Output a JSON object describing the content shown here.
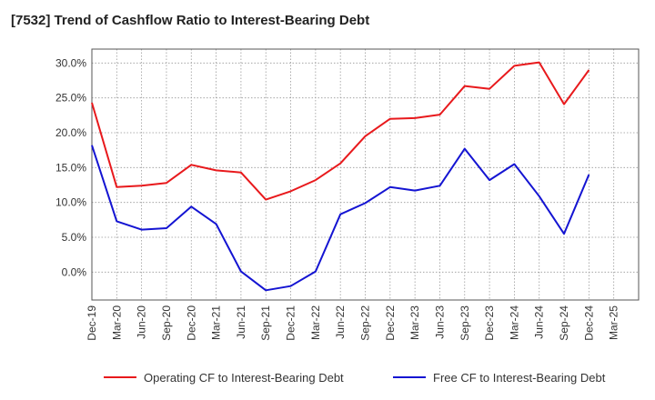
{
  "title": "[7532]  Trend of Cashflow Ratio to Interest-Bearing Debt",
  "chart_data": {
    "type": "line",
    "title": "[7532]  Trend of Cashflow Ratio to Interest-Bearing Debt",
    "categories": [
      "Dec-19",
      "Mar-20",
      "Jun-20",
      "Sep-20",
      "Dec-20",
      "Mar-21",
      "Jun-21",
      "Sep-21",
      "Dec-21",
      "Mar-22",
      "Jun-22",
      "Sep-22",
      "Dec-22",
      "Mar-23",
      "Jun-23",
      "Sep-23",
      "Dec-23",
      "Mar-24",
      "Jun-24",
      "Sep-24",
      "Dec-24",
      "Mar-25"
    ],
    "y_ticks": [
      "0.0%",
      "5.0%",
      "10.0%",
      "15.0%",
      "20.0%",
      "25.0%",
      "30.0%"
    ],
    "ylim": [
      -4,
      32
    ],
    "grid": true,
    "legend_position": "bottom",
    "series": [
      {
        "name": "Operating CF to Interest-Bearing Debt",
        "color": "#e8191c",
        "values": [
          24.3,
          12.2,
          12.4,
          12.8,
          15.4,
          14.6,
          14.3,
          10.4,
          11.6,
          13.2,
          15.6,
          19.5,
          22.0,
          22.1,
          22.6,
          26.7,
          26.3,
          29.6,
          30.1,
          24.1,
          29.0,
          null
        ]
      },
      {
        "name": "Free CF to Interest-Bearing Debt",
        "color": "#1414d2",
        "values": [
          18.2,
          7.3,
          6.1,
          6.3,
          9.4,
          6.9,
          0.1,
          -2.6,
          -2.0,
          0.1,
          8.3,
          9.9,
          12.2,
          11.7,
          12.4,
          17.7,
          13.2,
          15.5,
          10.9,
          5.5,
          14.0,
          null
        ]
      }
    ]
  }
}
